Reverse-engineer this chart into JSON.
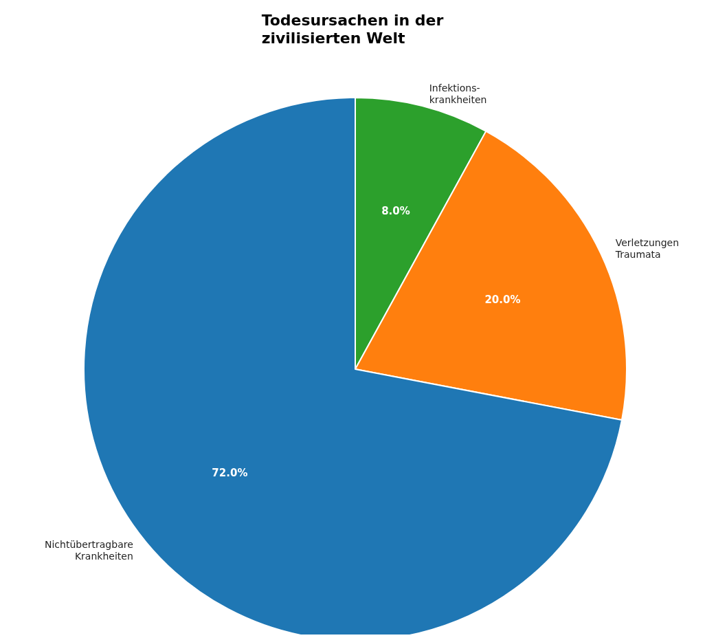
{
  "chart_data": {
    "type": "pie",
    "title": "Todesursachen in der\nzivilisierten Welt",
    "categories": [
      "Infektions-\nkrankheiten",
      "Verletzungen\nTraumata",
      "Nichtübertragbare\nKrankheiten"
    ],
    "values": [
      8,
      20,
      72
    ],
    "colors": [
      "#2ca02c",
      "#ff7f0e",
      "#1f77b4"
    ],
    "value_labels": [
      "8.0%",
      "20.0%",
      "72.0%"
    ]
  }
}
